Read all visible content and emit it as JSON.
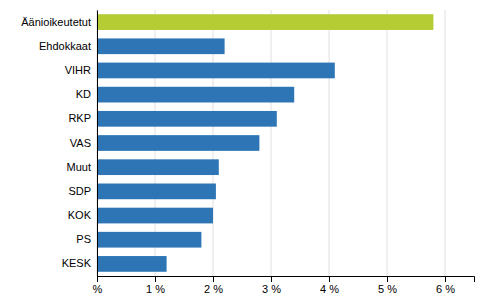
{
  "chart_data": {
    "type": "bar",
    "orientation": "horizontal",
    "categories": [
      "Äänioikeutetut",
      "Ehdokkaat",
      "VIHR",
      "KD",
      "RKP",
      "VAS",
      "Muut",
      "SDP",
      "KOK",
      "PS",
      "KESK"
    ],
    "values": [
      5.8,
      2.2,
      4.1,
      3.4,
      3.1,
      2.8,
      2.1,
      2.05,
      2.0,
      1.8,
      1.2
    ],
    "colors": [
      "#b5cc34",
      "#2e75b6",
      "#2e75b6",
      "#2e75b6",
      "#2e75b6",
      "#2e75b6",
      "#2e75b6",
      "#2e75b6",
      "#2e75b6",
      "#2e75b6",
      "#2e75b6"
    ],
    "xlim": [
      0,
      6.5
    ],
    "xticks": [
      {
        "value": 0,
        "label": "%"
      },
      {
        "value": 1,
        "label": "1 %"
      },
      {
        "value": 2,
        "label": "2 %"
      },
      {
        "value": 3,
        "label": "3 %"
      },
      {
        "value": 4,
        "label": "4 %"
      },
      {
        "value": 5,
        "label": "5 %"
      },
      {
        "value": 6,
        "label": "6 %"
      }
    ],
    "grid": true
  }
}
